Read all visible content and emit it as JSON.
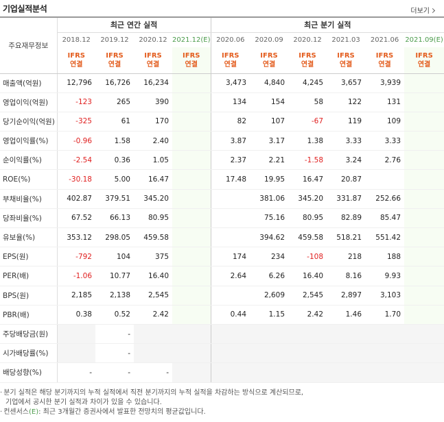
{
  "header": {
    "title": "기업실적분석",
    "more_label": "더보기"
  },
  "table": {
    "label_header": "주요재무정보",
    "group_annual": "최근 연간 실적",
    "group_quarter": "최근 분기 실적",
    "annual_periods": [
      "2018.12",
      "2019.12",
      "2020.12",
      "2021.12"
    ],
    "quarter_periods": [
      "2020.06",
      "2020.09",
      "2020.12",
      "2021.03",
      "2021.06",
      "2021.09"
    ],
    "est_suffix": "(E)",
    "ifrs_line1": "IFRS",
    "ifrs_line2": "연결",
    "rows": [
      {
        "label": "매출액(억원)",
        "annual": [
          "12,796",
          "16,726",
          "16,234",
          ""
        ],
        "quarter": [
          "3,473",
          "4,840",
          "4,245",
          "3,657",
          "3,939",
          ""
        ]
      },
      {
        "label": "영업이익(억원)",
        "annual": [
          "-123",
          "265",
          "390",
          ""
        ],
        "quarter": [
          "134",
          "154",
          "58",
          "122",
          "131",
          ""
        ]
      },
      {
        "label": "당기순이익(억원)",
        "annual": [
          "-325",
          "61",
          "170",
          ""
        ],
        "quarter": [
          "82",
          "107",
          "-67",
          "119",
          "109",
          ""
        ]
      },
      {
        "label": "영업이익률(%)",
        "annual": [
          "-0.96",
          "1.58",
          "2.40",
          ""
        ],
        "quarter": [
          "3.87",
          "3.17",
          "1.38",
          "3.33",
          "3.33",
          ""
        ]
      },
      {
        "label": "순이익률(%)",
        "annual": [
          "-2.54",
          "0.36",
          "1.05",
          ""
        ],
        "quarter": [
          "2.37",
          "2.21",
          "-1.58",
          "3.24",
          "2.76",
          ""
        ]
      },
      {
        "label": "ROE(%)",
        "annual": [
          "-30.18",
          "5.00",
          "16.47",
          ""
        ],
        "quarter": [
          "17.48",
          "19.95",
          "16.47",
          "20.87",
          "",
          ""
        ]
      },
      {
        "label": "부채비율(%)",
        "annual": [
          "402.87",
          "379.51",
          "345.20",
          ""
        ],
        "quarter": [
          "",
          "381.06",
          "345.20",
          "331.87",
          "252.66",
          ""
        ]
      },
      {
        "label": "당좌비율(%)",
        "annual": [
          "67.52",
          "66.13",
          "80.95",
          ""
        ],
        "quarter": [
          "",
          "75.16",
          "80.95",
          "82.89",
          "85.47",
          ""
        ]
      },
      {
        "label": "유보율(%)",
        "annual": [
          "353.12",
          "298.05",
          "459.58",
          ""
        ],
        "quarter": [
          "",
          "394.62",
          "459.58",
          "518.21",
          "551.42",
          ""
        ]
      },
      {
        "label": "EPS(원)",
        "annual": [
          "-792",
          "104",
          "375",
          ""
        ],
        "quarter": [
          "174",
          "234",
          "-108",
          "218",
          "188",
          ""
        ]
      },
      {
        "label": "PER(배)",
        "annual": [
          "-1.06",
          "10.77",
          "16.40",
          ""
        ],
        "quarter": [
          "2.64",
          "6.26",
          "16.40",
          "8.16",
          "9.93",
          ""
        ]
      },
      {
        "label": "BPS(원)",
        "annual": [
          "2,185",
          "2,138",
          "2,545",
          ""
        ],
        "quarter": [
          "",
          "2,609",
          "2,545",
          "2,897",
          "3,103",
          ""
        ]
      },
      {
        "label": "PBR(배)",
        "annual": [
          "0.38",
          "0.52",
          "2.42",
          ""
        ],
        "quarter": [
          "0.44",
          "1.15",
          "2.42",
          "1.46",
          "1.70",
          ""
        ]
      },
      {
        "label": "주당배당금(원)",
        "annual": [
          "",
          "-",
          "",
          ""
        ],
        "quarter": [
          "",
          "",
          "",
          "",
          "",
          ""
        ]
      },
      {
        "label": "시가배당률(%)",
        "annual": [
          "",
          "-",
          "",
          ""
        ],
        "quarter": [
          "",
          "",
          "",
          "",
          "",
          ""
        ]
      },
      {
        "label": "배당성향(%)",
        "annual": [
          "-",
          "-",
          "-",
          ""
        ],
        "quarter": [
          "",
          "",
          "",
          "",
          "",
          ""
        ]
      }
    ],
    "group_breaks": [
      2,
      5,
      8,
      12
    ]
  },
  "notes": {
    "line1": "분기 실적은 해당 분기까지의 누적 실적에서 직전 분기까지의 누적 실적을 차감하는 방식으로 계산되므로,",
    "line2": "기업에서 공시한 분기 실적과 차이가 있을 수 있습니다.",
    "line3_prefix": "컨센서스",
    "line3_mark": "(E)",
    "line3_suffix": ": 최근 3개월간 증권사에서 발표한 전망치의 평균값입니다."
  },
  "colors": {
    "negative": "#e02020",
    "ifrs": "#e35c1d",
    "estimate": "#4b9b4b",
    "estimate_bg": "#f7fdf3"
  }
}
